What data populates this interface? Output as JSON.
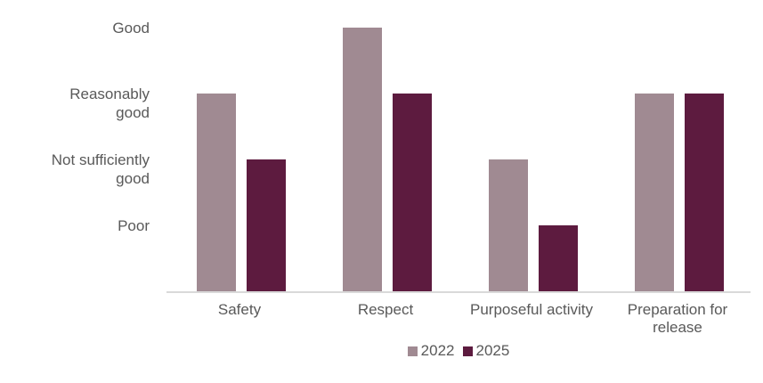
{
  "figure": {
    "background_color": "#ffffff",
    "text_color": "#595959",
    "axis_line_color": "#d9d9d9"
  },
  "chart_data": {
    "type": "bar",
    "title": "",
    "xlabel": "",
    "ylabel": "",
    "categories": [
      "Safety",
      "Respect",
      "Purposeful activity",
      "Preparation for release"
    ],
    "series": [
      {
        "name": "2022",
        "color": "#a08a92",
        "values": [
          3,
          4,
          2,
          3
        ]
      },
      {
        "name": "2025",
        "color": "#5d1b3f",
        "values": [
          2,
          3,
          1,
          3
        ]
      }
    ],
    "value_scale": {
      "1": "Poor",
      "2": "Not sufficiently good",
      "3": "Reasonably good",
      "4": "Good"
    },
    "yticks": [
      {
        "value": 4,
        "label": "Good"
      },
      {
        "value": 3,
        "label": "Reasonably\ngood"
      },
      {
        "value": 2,
        "label": "Not sufficiently\ngood"
      },
      {
        "value": 1,
        "label": "Poor"
      }
    ],
    "ylim": [
      0,
      4
    ],
    "grid": false,
    "legend_position": "bottom-center"
  }
}
